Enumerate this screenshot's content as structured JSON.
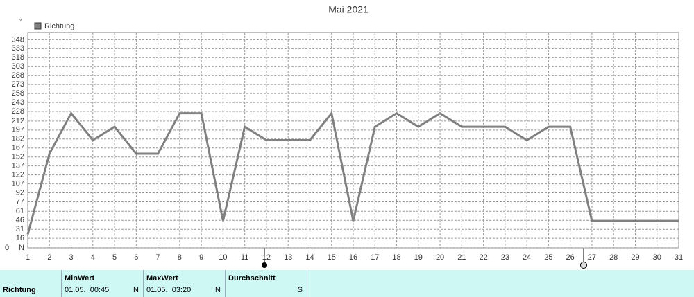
{
  "chart_data": {
    "type": "line",
    "title": "Mai 2021",
    "unit_label": "°",
    "origin_label": "0",
    "categories": [
      "1",
      "2",
      "3",
      "4",
      "5",
      "6",
      "7",
      "8",
      "9",
      "10",
      "11",
      "12",
      "13",
      "14",
      "15",
      "16",
      "17",
      "18",
      "19",
      "20",
      "21",
      "22",
      "23",
      "24",
      "25",
      "26",
      "27",
      "28",
      "29",
      "30",
      "31"
    ],
    "series": [
      {
        "name": "Richtung",
        "color": "#808080",
        "values": [
          22.5,
          157.5,
          225,
          180,
          202.5,
          157.5,
          157.5,
          225,
          225,
          45,
          202.5,
          180,
          180,
          180,
          225,
          45,
          202.5,
          225,
          202.5,
          225,
          202.5,
          202.5,
          202.5,
          180,
          202.5,
          202.5,
          45,
          45,
          45,
          45,
          45
        ]
      }
    ],
    "ylim": [
      0,
      360
    ],
    "yticks": [
      {
        "value": 0,
        "label": "N"
      },
      16,
      31,
      46,
      61,
      77,
      92,
      107,
      122,
      137,
      152,
      167,
      182,
      197,
      212,
      228,
      243,
      258,
      273,
      288,
      303,
      318,
      333,
      348
    ],
    "grid": true,
    "legend": "top-left"
  },
  "stats_table": {
    "row_label": "Richtung",
    "columns": [
      {
        "header": "MinWert",
        "time": "01.05.  00:45",
        "value": "N"
      },
      {
        "header": "MaxWert",
        "time": "01.05.  03:20",
        "value": "N"
      },
      {
        "header": "Durchschnitt",
        "value": "S"
      }
    ]
  }
}
